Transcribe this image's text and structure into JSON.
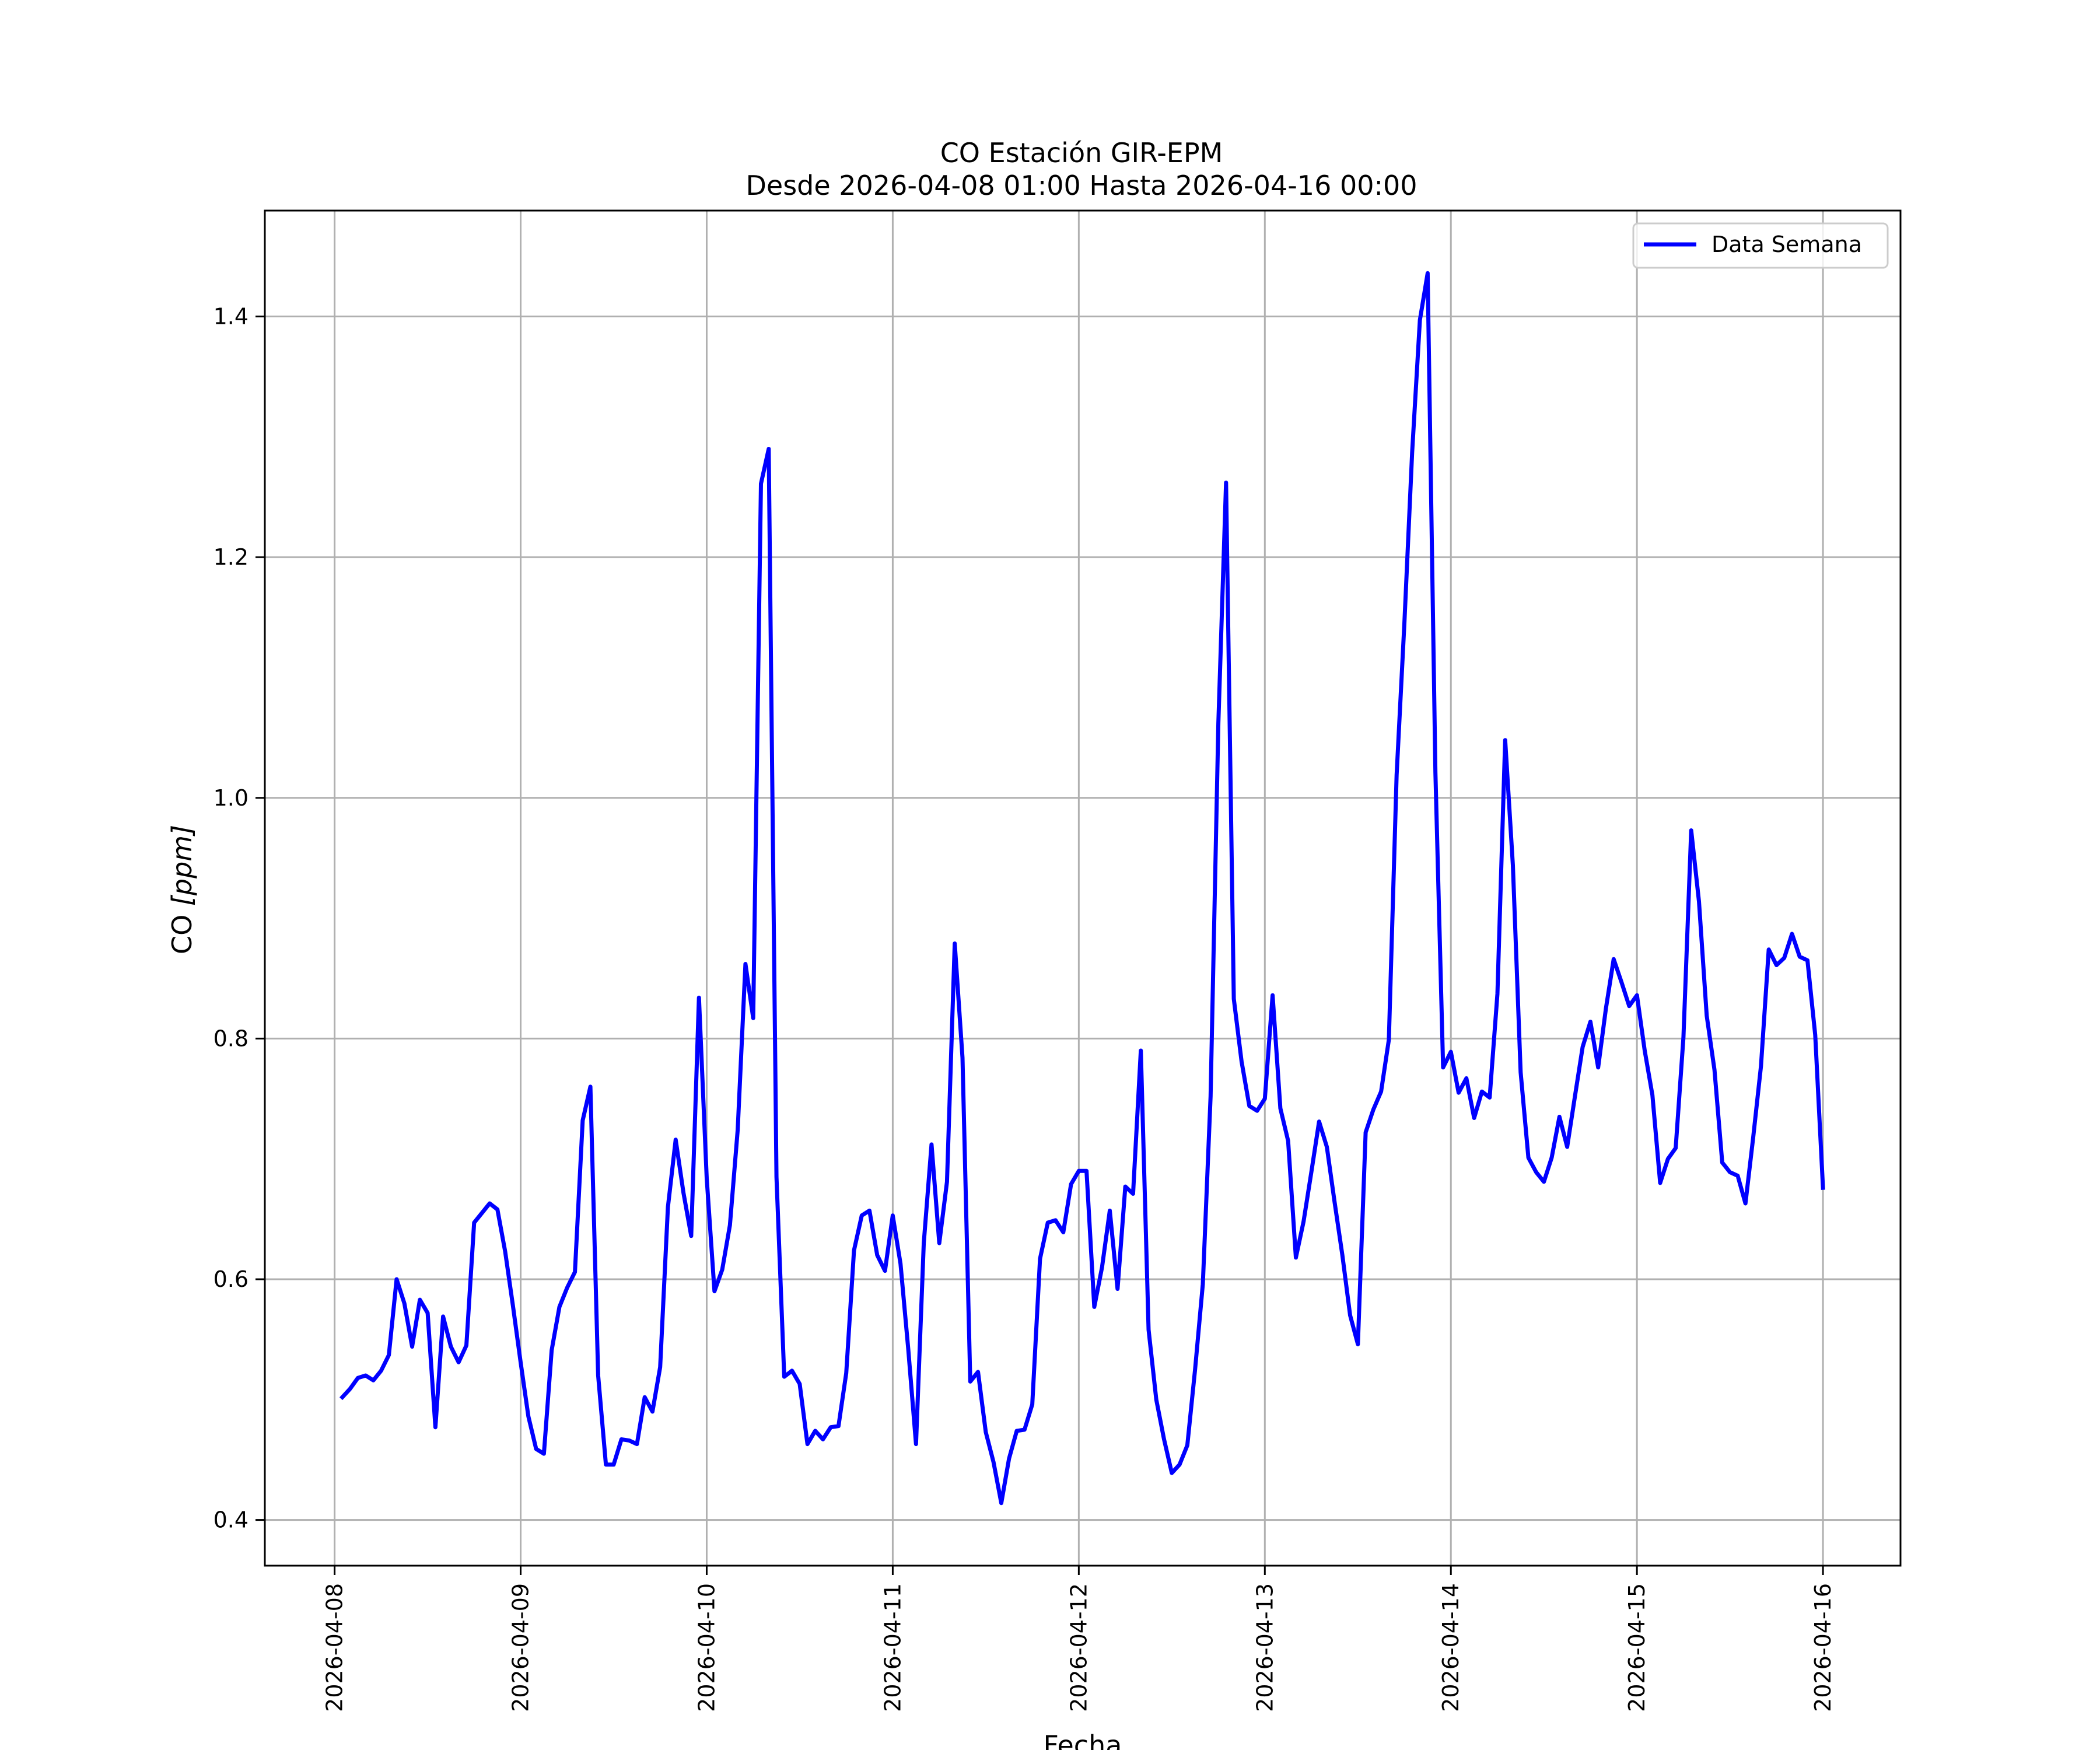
{
  "chart_data": {
    "type": "line",
    "title": "CO Estación GIR-EPM",
    "subtitle": "Desde 2026-04-08 01:00 Hasta 2026-04-16 00:00",
    "xlabel": "Fecha",
    "ylabel": "CO [ppm]",
    "ylabel_main": "CO ",
    "ylabel_unit": "[ppm]",
    "x_start": "2026-04-08 01:00",
    "x_step_hours": 1,
    "xticks": [
      "2026-04-08",
      "2026-04-09",
      "2026-04-10",
      "2026-04-11",
      "2026-04-12",
      "2026-04-13",
      "2026-04-14",
      "2026-04-15",
      "2026-04-16"
    ],
    "yticks": [
      "0.4",
      "0.6",
      "0.8",
      "1.0",
      "1.2",
      "1.4"
    ],
    "xlim": [
      "2026-04-07 15:00",
      "2026-04-16 10:00"
    ],
    "ylim": [
      0.362,
      1.488
    ],
    "grid": true,
    "legend_position": "top-right",
    "series": [
      {
        "name": "Data Semana",
        "color": "#0000ff",
        "values": [
          0.502,
          0.509,
          0.518,
          0.52,
          0.516,
          0.524,
          0.537,
          0.6,
          0.58,
          0.544,
          0.583,
          0.572,
          0.477,
          0.569,
          0.544,
          0.531,
          0.545,
          0.647,
          0.655,
          0.663,
          0.658,
          0.623,
          0.578,
          0.531,
          0.486,
          0.459,
          0.455,
          0.541,
          0.577,
          0.593,
          0.606,
          0.732,
          0.76,
          0.52,
          0.446,
          0.446,
          0.467,
          0.466,
          0.463,
          0.502,
          0.49,
          0.527,
          0.66,
          0.716,
          0.672,
          0.636,
          0.834,
          0.684,
          0.59,
          0.608,
          0.645,
          0.724,
          0.862,
          0.817,
          1.261,
          1.29,
          0.685,
          0.519,
          0.524,
          0.513,
          0.463,
          0.474,
          0.467,
          0.477,
          0.478,
          0.522,
          0.624,
          0.653,
          0.657,
          0.62,
          0.607,
          0.653,
          0.613,
          0.542,
          0.463,
          0.63,
          0.712,
          0.63,
          0.681,
          0.879,
          0.784,
          0.515,
          0.523,
          0.473,
          0.448,
          0.414,
          0.451,
          0.474,
          0.475,
          0.496,
          0.617,
          0.647,
          0.649,
          0.639,
          0.679,
          0.69,
          0.69,
          0.577,
          0.61,
          0.657,
          0.592,
          0.677,
          0.671,
          0.79,
          0.558,
          0.5,
          0.467,
          0.439,
          0.446,
          0.462,
          0.525,
          0.596,
          0.752,
          1.062,
          1.262,
          0.833,
          0.781,
          0.744,
          0.74,
          0.75,
          0.836,
          0.742,
          0.715,
          0.618,
          0.648,
          0.689,
          0.731,
          0.71,
          0.664,
          0.62,
          0.57,
          0.546,
          0.722,
          0.741,
          0.756,
          0.799,
          1.019,
          1.145,
          1.287,
          1.397,
          1.436,
          1.021,
          0.776,
          0.789,
          0.755,
          0.767,
          0.734,
          0.756,
          0.751,
          0.837,
          1.048,
          0.944,
          0.772,
          0.701,
          0.689,
          0.681,
          0.701,
          0.735,
          0.71,
          0.752,
          0.793,
          0.814,
          0.776,
          0.825,
          0.866,
          0.847,
          0.827,
          0.836,
          0.79,
          0.753,
          0.68,
          0.7,
          0.709,
          0.801,
          0.973,
          0.914,
          0.819,
          0.774,
          0.697,
          0.689,
          0.686,
          0.663,
          0.718,
          0.777,
          0.874,
          0.861,
          0.867,
          0.887,
          0.868,
          0.865,
          0.803,
          0.676
        ]
      }
    ]
  }
}
